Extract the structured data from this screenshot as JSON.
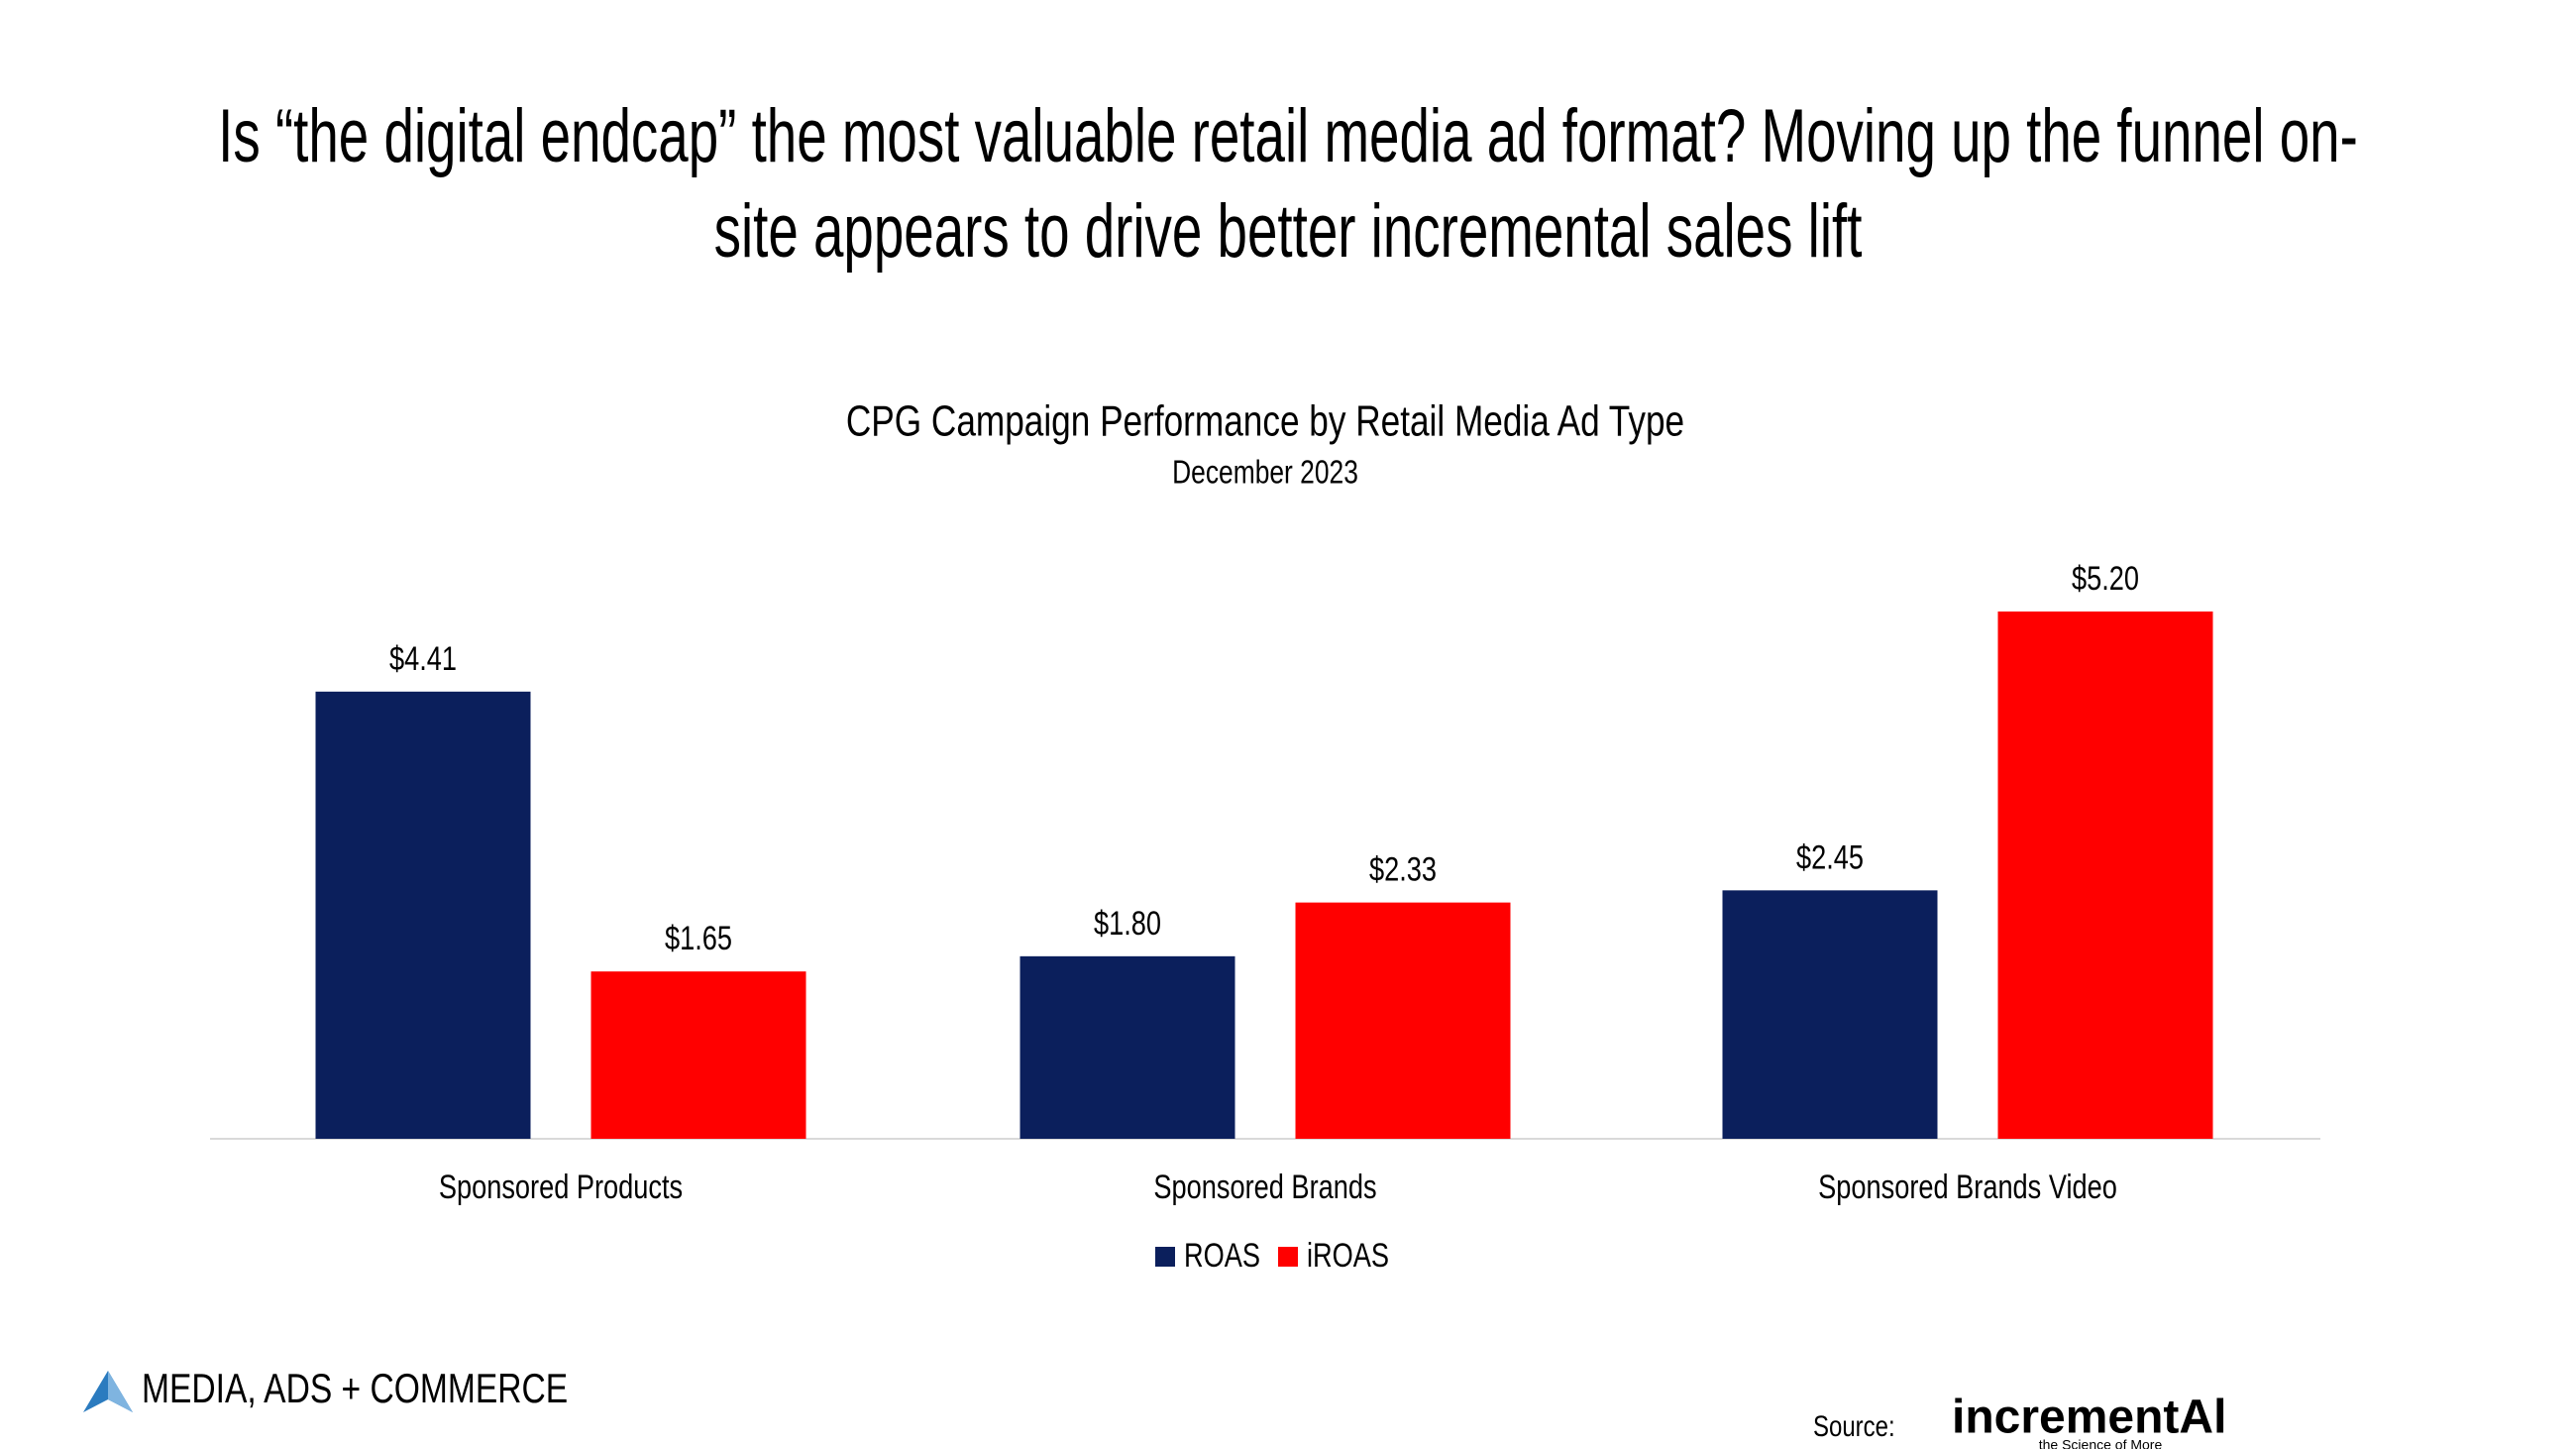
{
  "chart_data": {
    "type": "bar",
    "heading": "Is “the digital endcap” the most valuable retail media ad format? Moving up the funnel on-site appears to drive better incremental sales lift",
    "title": "CPG Campaign Performance by Retail Media Ad Type",
    "subtitle": "December 2023",
    "categories": [
      "Sponsored Products",
      "Sponsored Brands",
      "Sponsored Brands Video"
    ],
    "series": [
      {
        "name": "ROAS",
        "color": "#0b1f5c",
        "values": [
          4.41,
          1.8,
          2.45
        ],
        "value_labels": [
          "$4.41",
          "$1.80",
          "$2.45"
        ]
      },
      {
        "name": "iROAS",
        "color": "#ff0000",
        "values": [
          1.65,
          2.33,
          5.2
        ],
        "value_labels": [
          "$1.65",
          "$2.33",
          "$5.20"
        ]
      }
    ],
    "legend": "bottom"
  },
  "footer": {
    "brand": "MEDIA, ADS + COMMERCE",
    "source_label": "Source:",
    "source_logo": "incrementAl",
    "source_tagline": "the Science of More"
  }
}
